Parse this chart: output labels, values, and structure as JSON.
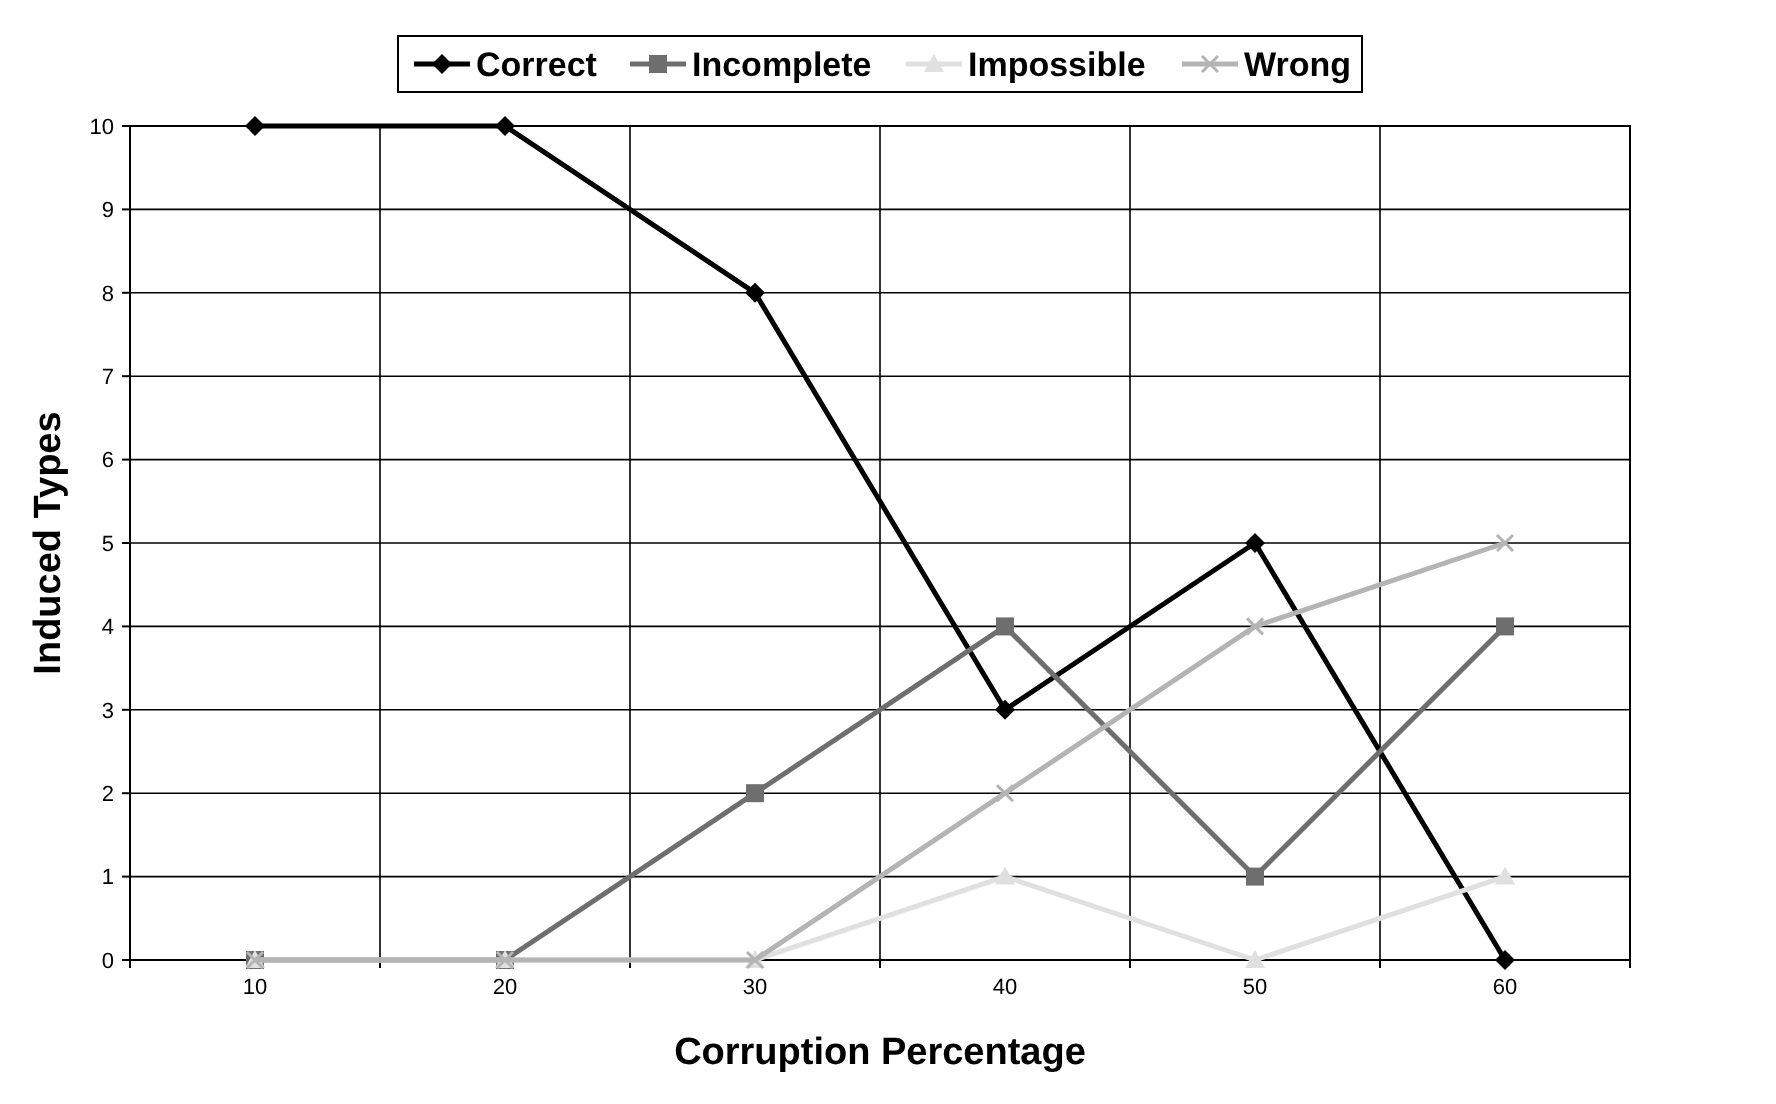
{
  "chart_data": {
    "type": "line",
    "xlabel": "Corruption Percentage",
    "ylabel": "Induced Types",
    "categories": [
      "10",
      "20",
      "30",
      "40",
      "50",
      "60"
    ],
    "series": [
      {
        "name": "Correct",
        "color": "#000000",
        "marker": "diamond",
        "values": [
          10,
          10,
          8,
          3,
          5,
          0
        ]
      },
      {
        "name": "Incomplete",
        "color": "#6e6e6e",
        "marker": "square",
        "values": [
          0,
          0,
          2,
          4,
          1,
          4
        ]
      },
      {
        "name": "Impossible",
        "color": "#e0e0e0",
        "marker": "triangle",
        "values": [
          0,
          0,
          0,
          1,
          0,
          1
        ]
      },
      {
        "name": "Wrong",
        "color": "#b4b4b4",
        "marker": "cross",
        "values": [
          0,
          0,
          0,
          2,
          4,
          5
        ]
      }
    ],
    "ylim": [
      0,
      10
    ],
    "yticks": [
      0,
      1,
      2,
      3,
      4,
      5,
      6,
      7,
      8,
      9,
      10
    ],
    "grid": true,
    "legend": "top"
  }
}
